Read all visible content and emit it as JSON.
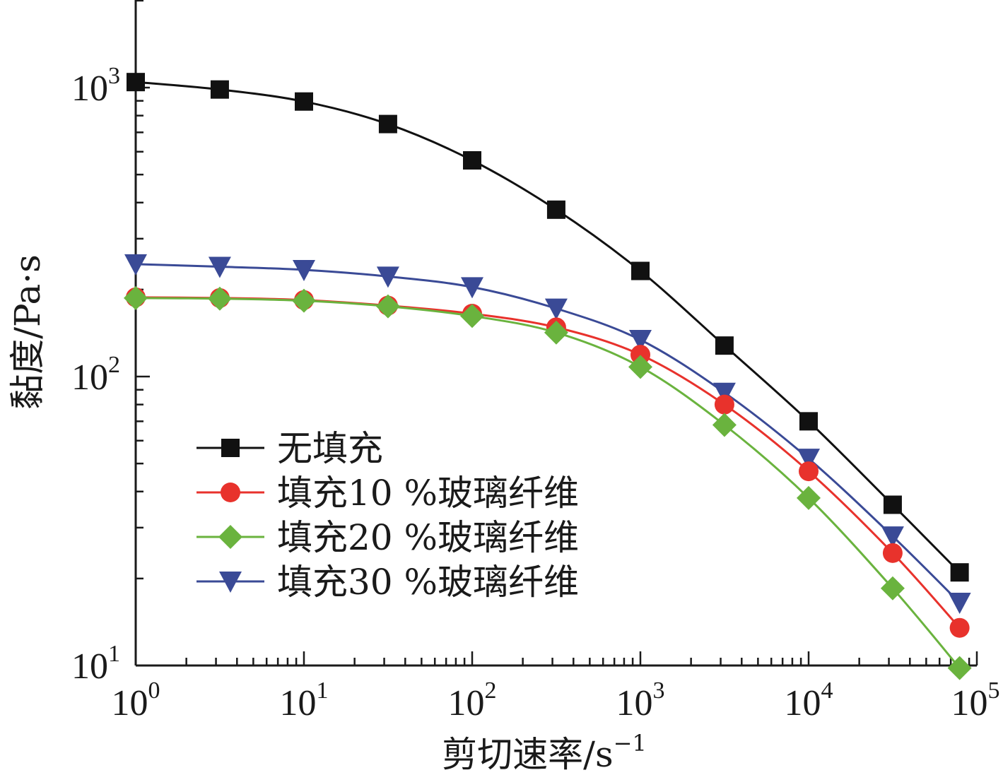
{
  "chart_data": {
    "type": "line",
    "x_scale": "log",
    "y_scale": "log",
    "xlabel": "剪切速率/s",
    "xlabel_exponent": "−1",
    "ylabel": "黏度/Pa·s",
    "xlim": [
      1,
      100000
    ],
    "ylim": [
      10,
      2000
    ],
    "x_ticks": [
      {
        "base": "10",
        "exp": "0",
        "value": 1
      },
      {
        "base": "10",
        "exp": "1",
        "value": 10
      },
      {
        "base": "10",
        "exp": "2",
        "value": 100
      },
      {
        "base": "10",
        "exp": "3",
        "value": 1000
      },
      {
        "base": "10",
        "exp": "4",
        "value": 10000
      },
      {
        "base": "10",
        "exp": "5",
        "value": 100000
      }
    ],
    "y_ticks": [
      {
        "base": "10",
        "exp": "1",
        "value": 10
      },
      {
        "base": "10",
        "exp": "2",
        "value": 100
      },
      {
        "base": "10",
        "exp": "3",
        "value": 1000
      }
    ],
    "grid": false,
    "legend_position": "lower-left",
    "series": [
      {
        "name": "无填充",
        "color": "#111111",
        "marker": "square",
        "x": [
          1,
          3.16,
          10,
          31.6,
          100,
          316,
          1000,
          3160,
          10000,
          31600,
          79000
        ],
        "y": [
          1045,
          985,
          895,
          748,
          560,
          378,
          232,
          128,
          70,
          36,
          21
        ]
      },
      {
        "name": "填充10 %玻璃纤维",
        "color": "#e8322c",
        "marker": "circle",
        "x": [
          1,
          3.16,
          10,
          31.6,
          100,
          316,
          1000,
          3160,
          10000,
          31600,
          79000
        ],
        "y": [
          188,
          187,
          184,
          176,
          165,
          148,
          119,
          80,
          47,
          24.5,
          13.5
        ]
      },
      {
        "name": "填充20 %玻璃纤维",
        "color": "#6ab33e",
        "marker": "diamond",
        "x": [
          1,
          3.16,
          10,
          31.6,
          100,
          316,
          1000,
          3160,
          10000,
          31600,
          79000
        ],
        "y": [
          187,
          186,
          183,
          175,
          162,
          142,
          108,
          68,
          38,
          18.5,
          9.8
        ]
      },
      {
        "name": "填充30 %玻璃纤维",
        "color": "#3a4a96",
        "marker": "triangle-down",
        "x": [
          1,
          3.16,
          10,
          31.6,
          100,
          316,
          1000,
          3160,
          10000,
          31600,
          79000
        ],
        "y": [
          245,
          240,
          234,
          222,
          204,
          172,
          134,
          88,
          52,
          28,
          16.5
        ]
      }
    ]
  }
}
